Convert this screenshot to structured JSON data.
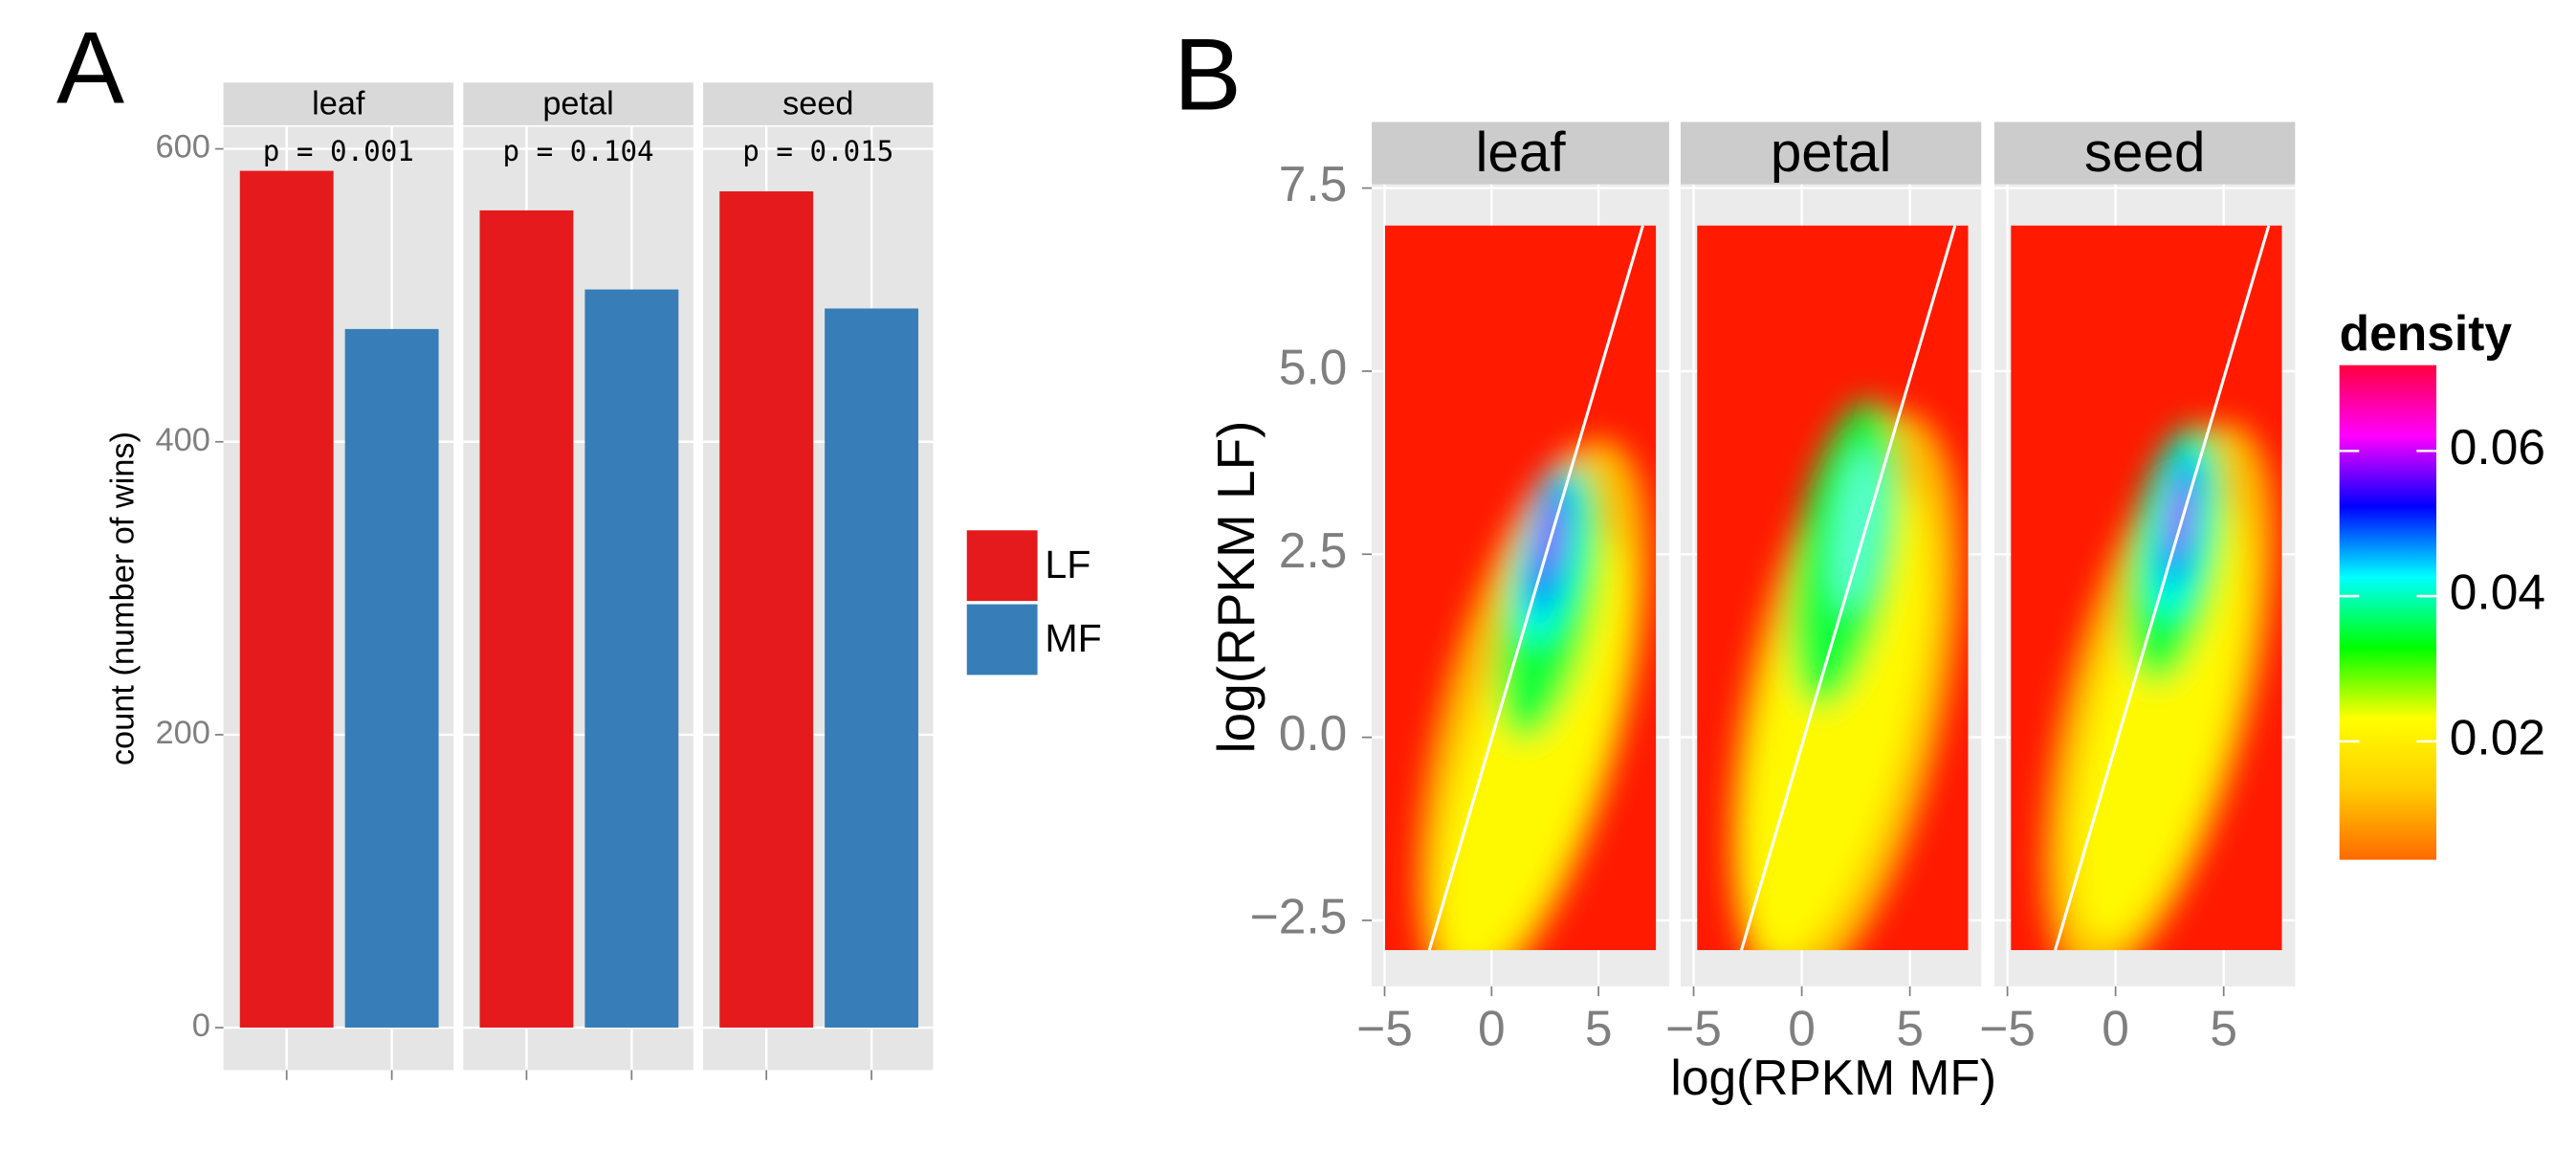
{
  "chart_data": [
    {
      "type": "bar",
      "panel_label": "A",
      "facets": [
        "leaf",
        "petal",
        "seed"
      ],
      "annotations": [
        "p = 0.001",
        "p = 0.104",
        "p = 0.015"
      ],
      "y_label": "count (number of wins)",
      "series": [
        {
          "name": "LF",
          "color": "#e41a1c",
          "values": [
            585,
            558,
            571
          ]
        },
        {
          "name": "MF",
          "color": "#377eb8",
          "values": [
            477,
            504,
            491
          ]
        }
      ],
      "ylim": [
        -29,
        615
      ],
      "yticks": [
        0,
        200,
        400,
        600
      ],
      "grid": true
    },
    {
      "type": "density2d",
      "panel_label": "B",
      "facets": [
        "leaf",
        "petal",
        "seed"
      ],
      "x_label": "log(RPKM MF)",
      "y_label": "log(RPKM LF)",
      "xlim": [
        -5.6,
        8.3
      ],
      "xticks": [
        {
          "value": -5,
          "label": "−5"
        },
        0,
        5
      ],
      "ylim": [
        -3.4,
        7.55
      ],
      "yticks": [
        {
          "value": -2.5,
          "label": "−2.5"
        },
        {
          "value": 0,
          "label": "0.0"
        },
        2.5,
        {
          "value": 5,
          "label": "5.0"
        },
        7.5
      ],
      "grid": true,
      "legend_title": "density",
      "colorbar_lim": [
        0.0037,
        0.0718
      ],
      "colorbar_ticks": [
        0.02,
        0.04,
        0.06
      ],
      "colorbar_colors": [
        "#ff6a00",
        "#ffcc00",
        "#ffff00",
        "#00ff00",
        "#00ffff",
        "#0000ff",
        "#ff00ff",
        "#ff0040"
      ]
    }
  ]
}
